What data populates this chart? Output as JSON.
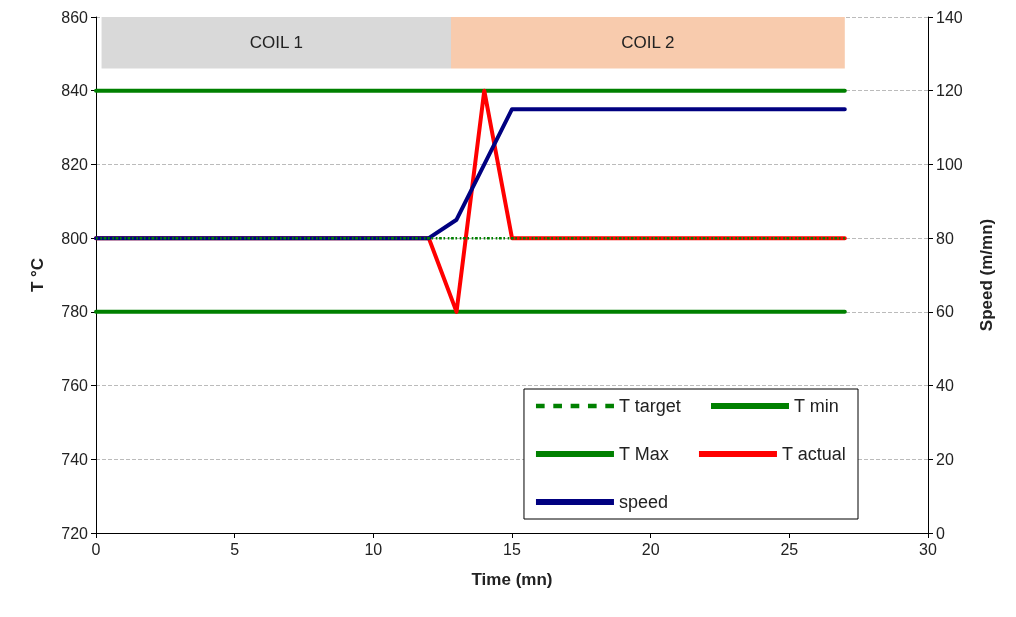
{
  "chart_data": {
    "type": "line",
    "xlabel": "Time (mn)",
    "ylabel": "T °C",
    "y2label": "Speed (m/mn)",
    "xlim": [
      0,
      30
    ],
    "xticks": [
      0,
      5,
      10,
      15,
      20,
      25,
      30
    ],
    "ylim": [
      720,
      860
    ],
    "yticks": [
      720,
      740,
      760,
      780,
      800,
      820,
      840,
      860
    ],
    "y2lim": [
      0,
      140
    ],
    "y2ticks": [
      0,
      20,
      40,
      60,
      80,
      100,
      120,
      140
    ],
    "grid": "y",
    "legend": "bottom right",
    "marker": "none",
    "bands": [
      {
        "axis": "x",
        "from": 0.2,
        "to": 12.8,
        "label": "COIL 1",
        "color": "#d9d9d9"
      },
      {
        "axis": "x",
        "from": 12.8,
        "to": 27,
        "label": "COIL 2",
        "color": "#f8cbad"
      }
    ],
    "series": [
      {
        "name": "T target",
        "color": "#008000",
        "line_style": "dotted",
        "x": [
          0,
          27
        ],
        "values": [
          800,
          800
        ]
      },
      {
        "name": "T min",
        "color": "#008000",
        "x": [
          0,
          27
        ],
        "values": [
          780,
          780
        ]
      },
      {
        "name": "T Max",
        "color": "#008000",
        "x": [
          0,
          27
        ],
        "values": [
          840,
          840
        ]
      },
      {
        "name": "T actual",
        "color": "#ff0000",
        "x": [
          0,
          12,
          13,
          14,
          15,
          27
        ],
        "values": [
          800,
          800,
          780,
          840,
          800,
          800
        ]
      },
      {
        "name": "speed",
        "color": "#000080",
        "axis": "y2",
        "x": [
          0,
          12,
          13,
          15,
          27
        ],
        "values": [
          80,
          80,
          85,
          115,
          115
        ]
      }
    ]
  }
}
